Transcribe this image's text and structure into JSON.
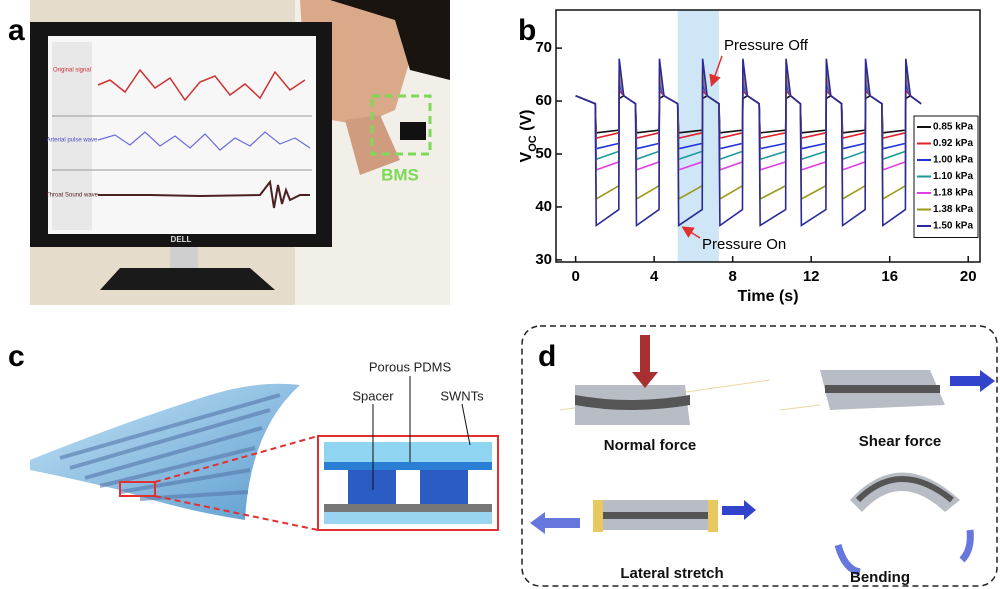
{
  "panel_labels": [
    "a",
    "b",
    "c",
    "d"
  ],
  "photo": {
    "screen_labels": [
      "Original signal",
      "Arterial pulse wave",
      "Throat Sound wave"
    ],
    "brand": "DELL",
    "sensor_label": "BMS"
  },
  "chart_data": {
    "type": "line",
    "x_label": "Time (s)",
    "y_label": {
      "symbol": "V",
      "subscript": "OC",
      "unit": "(V)"
    },
    "annotations": [
      "Pressure Off",
      "Pressure On"
    ],
    "highlight_x": [
      5.2,
      7.3
    ],
    "xlim": [
      -1,
      20.6
    ],
    "xticks": [
      0,
      4,
      8,
      12,
      16,
      20
    ],
    "ylim": [
      29.6,
      77.2
    ],
    "yticks": [
      30,
      40,
      50,
      60,
      70
    ],
    "grid": false,
    "legend": "right",
    "x": [
      0,
      1,
      1.05,
      2.2,
      2.22,
      2.45,
      3.05,
      3.1,
      4.25,
      4.27,
      4.5,
      5.2,
      5.25,
      6.45,
      6.47,
      6.7,
      7.3,
      7.35,
      8.5,
      8.52,
      8.75,
      9.35,
      9.4,
      10.7,
      10.72,
      10.95,
      11.45,
      11.5,
      12.75,
      12.77,
      13,
      13.55,
      13.6,
      14.75,
      14.77,
      15,
      15.6,
      15.65,
      16.8,
      16.82,
      17.05,
      17.6
    ],
    "series": [
      {
        "name": "0.85 kPa",
        "color": "#111111",
        "values": [
          61,
          59.5,
          54,
          54.5,
          60.5,
          61,
          59.5,
          54,
          54.5,
          60.5,
          61,
          59.5,
          54,
          54.5,
          60.5,
          61,
          59.5,
          54,
          54.5,
          60.5,
          61,
          59.5,
          54,
          54.5,
          60.5,
          61,
          59.5,
          54,
          54.5,
          60.5,
          61,
          59.5,
          54,
          54.5,
          60.5,
          61,
          59.5,
          54,
          54.5,
          60.5,
          61,
          59.5
        ]
      },
      {
        "name": "0.92 kPa",
        "color": "#e0202a",
        "values": [
          61,
          59.5,
          53,
          54,
          62,
          61,
          59.5,
          53,
          54,
          62,
          61,
          59.5,
          53,
          54,
          62,
          61,
          59.5,
          53,
          54,
          62,
          61,
          59.5,
          53,
          54,
          62,
          61,
          59.5,
          53,
          54,
          62,
          61,
          59.5,
          53,
          54,
          62,
          61,
          59.5,
          53,
          54,
          62,
          61,
          59.5
        ]
      },
      {
        "name": "1.00 kPa",
        "color": "#2233dd",
        "values": [
          61,
          59.5,
          51,
          52,
          63,
          61,
          59.5,
          51,
          52,
          63,
          61,
          59.5,
          51,
          52,
          63,
          61,
          59.5,
          51,
          52,
          63,
          61,
          59.5,
          51,
          52,
          63,
          61,
          59.5,
          51,
          52,
          63,
          61,
          59.5,
          51,
          52,
          63,
          61,
          59.5,
          51,
          52,
          63,
          61,
          59.5
        ]
      },
      {
        "name": "1.10 kPa",
        "color": "#1a9a9a",
        "values": [
          61,
          59.5,
          49,
          50.5,
          64,
          61,
          59.5,
          49,
          50.5,
          64,
          61,
          59.5,
          49,
          50.5,
          64,
          61,
          59.5,
          49,
          50.5,
          64,
          61,
          59.5,
          49,
          50.5,
          64,
          61,
          59.5,
          49,
          50.5,
          64,
          61,
          59.5,
          49,
          50.5,
          64,
          61,
          59.5,
          49,
          50.5,
          64,
          61,
          59.5
        ]
      },
      {
        "name": "1.18 kPa",
        "color": "#e040e0",
        "values": [
          61,
          59.5,
          47,
          48.5,
          65,
          61,
          59.5,
          47,
          48.5,
          65,
          61,
          59.5,
          47,
          48.5,
          65,
          61,
          59.5,
          47,
          48.5,
          65,
          61,
          59.5,
          47,
          48.5,
          65,
          61,
          59.5,
          47,
          48.5,
          65,
          61,
          59.5,
          47,
          48.5,
          65,
          61,
          59.5,
          47,
          48.5,
          65,
          61,
          59.5
        ]
      },
      {
        "name": "1.38 kPa",
        "color": "#9a9a1a",
        "values": [
          61,
          59.5,
          41.5,
          44,
          66,
          61,
          59.5,
          41.5,
          44,
          66,
          61,
          59.5,
          41.5,
          44,
          66,
          61,
          59.5,
          41.5,
          44,
          66,
          61,
          59.5,
          41.5,
          44,
          66,
          61,
          59.5,
          41.5,
          44,
          66,
          61,
          59.5,
          41.5,
          44,
          66,
          61,
          59.5,
          41.5,
          44,
          66,
          61,
          59.5
        ]
      },
      {
        "name": "1.50 kPa",
        "color": "#2a2a9a",
        "values": [
          61,
          59.5,
          36.5,
          39.5,
          68,
          61,
          59.5,
          36.5,
          39.5,
          68,
          61,
          59.5,
          36.5,
          39.5,
          68,
          61,
          59.5,
          36.5,
          39.5,
          68,
          61,
          59.5,
          36.5,
          39.5,
          68,
          61,
          59.5,
          36.5,
          39.5,
          68,
          61,
          59.5,
          36.5,
          39.5,
          68,
          61,
          59.5,
          36.5,
          39.5,
          68,
          61,
          59.5
        ]
      }
    ]
  },
  "schematic": {
    "labels": [
      "Porous PDMS",
      "Spacer",
      "SWNTs"
    ]
  },
  "modes": {
    "labels": [
      "Normal force",
      "Shear force",
      "Lateral stretch",
      "Bending"
    ]
  }
}
